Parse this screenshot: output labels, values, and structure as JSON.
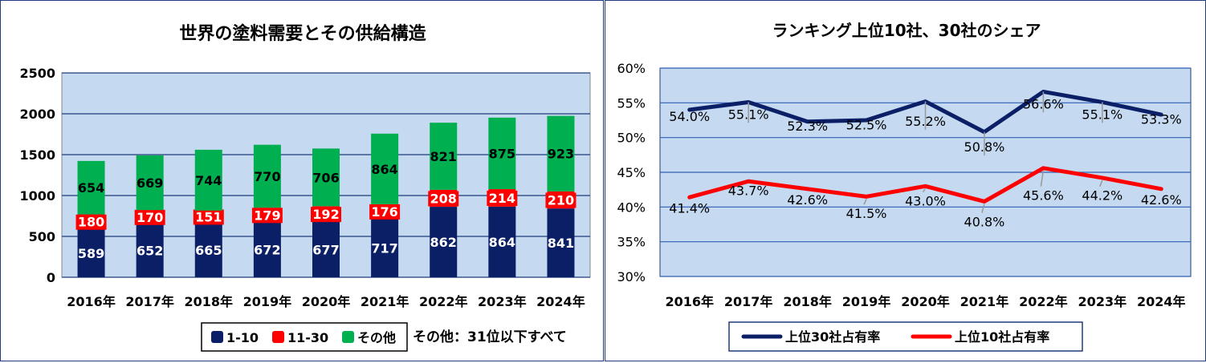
{
  "chart_data": [
    {
      "type": "bar",
      "stacked": true,
      "title": "世界の塗料需要とその供給構造",
      "categories": [
        "2016年",
        "2017年",
        "2018年",
        "2019年",
        "2020年",
        "2021年",
        "2022年",
        "2023年",
        "2024年"
      ],
      "series": [
        {
          "name": "1-10",
          "values": [
            589,
            652,
            665,
            672,
            677,
            717,
            862,
            864,
            841
          ],
          "color": "#0b1f66"
        },
        {
          "name": "11-30",
          "values": [
            180,
            170,
            151,
            179,
            192,
            176,
            208,
            214,
            210
          ],
          "color": "#ff0000"
        },
        {
          "name": "その他",
          "values": [
            654,
            669,
            744,
            770,
            706,
            864,
            821,
            875,
            923
          ],
          "color": "#00b050"
        }
      ],
      "ylim": [
        0,
        2500
      ],
      "yticks": [
        0,
        500,
        1000,
        1500,
        2000,
        2500
      ],
      "grid": true,
      "legend": "bottom",
      "plot_bg": "#c5d9f1",
      "note": "その他：31位以下すべて"
    },
    {
      "type": "line",
      "title": "ランキング上位10社、30社のシェア",
      "categories": [
        "2016年",
        "2017年",
        "2018年",
        "2019年",
        "2020年",
        "2021年",
        "2022年",
        "2023年",
        "2024年"
      ],
      "series": [
        {
          "name": "上位30社占有率",
          "values": [
            54.0,
            55.1,
            52.3,
            52.5,
            55.2,
            50.8,
            56.6,
            55.1,
            53.3
          ],
          "labels": [
            "54.0%",
            "55.1%",
            "52.3%",
            "52.5%",
            "55.2%",
            "50.8%",
            "56.6%",
            "55.1%",
            "53.3%"
          ],
          "color": "#0b1f66"
        },
        {
          "name": "上位10社占有率",
          "values": [
            41.4,
            43.7,
            42.6,
            41.5,
            43.0,
            40.8,
            45.6,
            44.2,
            42.6
          ],
          "labels": [
            "41.4%",
            "43.7%",
            "42.6%",
            "41.5%",
            "43.0%",
            "40.8%",
            "45.6%",
            "44.2%",
            "42.6%"
          ],
          "color": "#ff0000"
        }
      ],
      "ylim": [
        30,
        60
      ],
      "yticks": [
        "30%",
        "35%",
        "40%",
        "45%",
        "50%",
        "55%",
        "60%"
      ],
      "grid": true,
      "legend": "bottom",
      "plot_bg": "#c5d9f1"
    }
  ]
}
